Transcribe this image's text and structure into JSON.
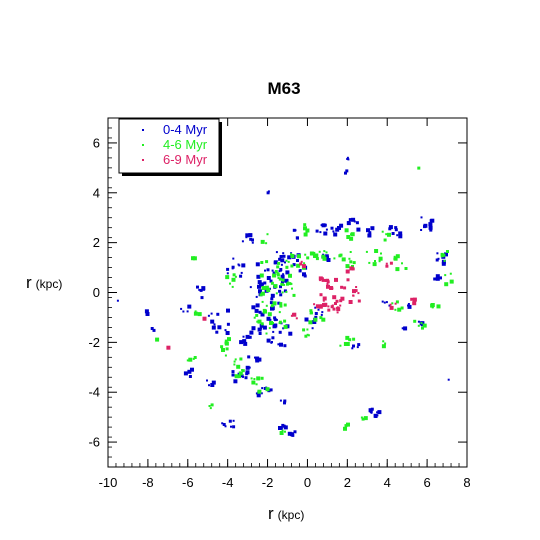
{
  "chart_data": {
    "type": "scatter",
    "title": "M63",
    "xlabel": "r",
    "xlabel_unit": "(kpc)",
    "ylabel": "r",
    "ylabel_unit": "(kpc)",
    "xlim": [
      -10,
      8
    ],
    "ylim": [
      -7,
      7
    ],
    "xticks": [
      -10,
      -8,
      -6,
      -4,
      -2,
      0,
      2,
      4,
      6,
      8
    ],
    "yticks": [
      -6,
      -4,
      -2,
      0,
      2,
      4,
      6
    ],
    "xtick_labels": [
      "-10",
      "-8",
      "-6",
      "-4",
      "-2",
      "0",
      "2",
      "4",
      "6",
      "8"
    ],
    "ytick_labels": [
      "-6",
      "-4",
      "-2",
      "0",
      "2",
      "4",
      "6"
    ],
    "grid": false,
    "legend_position": "top-left",
    "series": [
      {
        "name": "0-4 Myr",
        "color": "#0000cc",
        "clusters": [
          [
            -2.0,
            0.6,
            0.9,
            0.8,
            34
          ],
          [
            -1.0,
            1.4,
            0.7,
            0.3,
            14
          ],
          [
            -2.2,
            -0.6,
            0.8,
            1.0,
            30
          ],
          [
            -1.5,
            -1.6,
            0.6,
            0.5,
            14
          ],
          [
            -3.5,
            -3.3,
            0.4,
            0.3,
            10
          ],
          [
            -2.8,
            -2.7,
            0.3,
            0.3,
            8
          ],
          [
            -3.2,
            -1.7,
            0.3,
            0.3,
            7
          ],
          [
            -2.1,
            -3.9,
            0.5,
            0.15,
            10
          ],
          [
            -4.1,
            -5.2,
            0.4,
            0.15,
            7
          ],
          [
            -1.3,
            -5.3,
            0.2,
            0.1,
            5
          ],
          [
            -0.8,
            -5.6,
            0.2,
            0.1,
            4
          ],
          [
            -4.5,
            -1.2,
            0.5,
            0.6,
            12
          ],
          [
            -5.4,
            0.0,
            0.2,
            0.3,
            6
          ],
          [
            -3.7,
            1.1,
            0.4,
            0.4,
            10
          ],
          [
            -3.0,
            2.2,
            0.3,
            0.3,
            7
          ],
          [
            -0.7,
            2.4,
            0.2,
            0.2,
            4
          ],
          [
            1.0,
            2.6,
            0.6,
            0.2,
            14
          ],
          [
            2.2,
            2.8,
            0.3,
            0.2,
            7
          ],
          [
            3.0,
            2.5,
            0.2,
            0.2,
            4
          ],
          [
            4.3,
            2.6,
            0.3,
            0.3,
            8
          ],
          [
            5.9,
            2.8,
            0.3,
            0.3,
            10
          ],
          [
            6.6,
            1.2,
            0.3,
            0.6,
            12
          ],
          [
            2.0,
            5.4,
            0.1,
            0.1,
            3
          ],
          [
            1.9,
            4.9,
            0.1,
            0.1,
            2
          ],
          [
            -2.0,
            4.1,
            0.1,
            0.1,
            2
          ],
          [
            -1.3,
            -4.3,
            0.1,
            0.1,
            3
          ],
          [
            3.9,
            -0.4,
            0.2,
            0.1,
            4
          ],
          [
            5.0,
            -0.5,
            0.1,
            0.1,
            3
          ],
          [
            5.6,
            -1.2,
            0.2,
            0.1,
            4
          ],
          [
            4.8,
            -1.3,
            0.1,
            0.1,
            3
          ],
          [
            2.4,
            -2.1,
            0.2,
            0.1,
            4
          ],
          [
            3.3,
            -4.7,
            0.3,
            0.1,
            6
          ],
          [
            3.5,
            -4.9,
            0.2,
            0.1,
            3
          ],
          [
            -8.1,
            -0.7,
            0.1,
            0.2,
            2
          ],
          [
            -7.8,
            -1.4,
            0.1,
            0.1,
            2
          ],
          [
            -6.2,
            -0.6,
            0.2,
            0.2,
            4
          ],
          [
            -6.0,
            -3.2,
            0.2,
            0.2,
            4
          ],
          [
            -4.9,
            -3.6,
            0.2,
            0.2,
            4
          ],
          [
            0.6,
            -0.8,
            0.3,
            0.3,
            7
          ],
          [
            0.0,
            -1.2,
            0.3,
            0.2,
            5
          ],
          [
            -0.3,
            0.9,
            0.2,
            0.2,
            5
          ],
          [
            0.8,
            1.5,
            0.3,
            0.2,
            5
          ],
          [
            -9.6,
            -0.3,
            0.05,
            0.05,
            1
          ],
          [
            7.0,
            -3.5,
            0.05,
            0.05,
            1
          ]
        ]
      },
      {
        "name": "4-6 Myr",
        "color": "#22ee22",
        "clusters": [
          [
            -1.6,
            0.5,
            0.9,
            0.9,
            34
          ],
          [
            -1.9,
            -1.0,
            0.8,
            0.7,
            24
          ],
          [
            -0.6,
            1.3,
            0.6,
            0.3,
            14
          ],
          [
            0.6,
            1.6,
            0.5,
            0.2,
            10
          ],
          [
            1.8,
            1.4,
            0.5,
            0.3,
            10
          ],
          [
            3.3,
            1.5,
            0.4,
            0.3,
            8
          ],
          [
            4.6,
            1.3,
            0.3,
            0.3,
            7
          ],
          [
            6.8,
            1.6,
            0.2,
            0.3,
            6
          ],
          [
            7.0,
            0.6,
            0.2,
            0.2,
            4
          ],
          [
            2.0,
            2.4,
            0.2,
            0.2,
            5
          ],
          [
            3.8,
            2.3,
            0.2,
            0.2,
            4
          ],
          [
            -3.4,
            -3.0,
            0.4,
            0.4,
            10
          ],
          [
            -2.5,
            -3.6,
            0.4,
            0.3,
            8
          ],
          [
            -4.3,
            -2.1,
            0.4,
            0.4,
            8
          ],
          [
            -5.8,
            1.4,
            0.1,
            0.1,
            3
          ],
          [
            -5.6,
            -0.8,
            0.1,
            0.1,
            3
          ],
          [
            -7.6,
            -1.9,
            0.1,
            0.1,
            2
          ],
          [
            -4.8,
            -4.5,
            0.2,
            0.1,
            3
          ],
          [
            -1.3,
            -5.6,
            0.2,
            0.1,
            3
          ],
          [
            1.8,
            -5.3,
            0.2,
            0.1,
            3
          ],
          [
            2.7,
            -5.0,
            0.2,
            0.1,
            3
          ],
          [
            2.0,
            -1.9,
            0.4,
            0.2,
            6
          ],
          [
            3.8,
            -2.0,
            0.2,
            0.1,
            3
          ],
          [
            5.6,
            -1.2,
            0.3,
            0.2,
            5
          ],
          [
            4.4,
            -0.5,
            0.3,
            0.2,
            5
          ],
          [
            6.3,
            -0.4,
            0.2,
            0.2,
            4
          ],
          [
            0.4,
            -0.9,
            0.4,
            0.3,
            8
          ],
          [
            -0.2,
            -1.6,
            0.3,
            0.2,
            5
          ],
          [
            5.5,
            5.1,
            0.05,
            0.05,
            1
          ],
          [
            -2.2,
            2.2,
            0.2,
            0.2,
            4
          ],
          [
            -0.3,
            2.6,
            0.2,
            0.2,
            4
          ],
          [
            -5.9,
            -2.6,
            0.2,
            0.2,
            4
          ],
          [
            -3.9,
            0.5,
            0.3,
            0.3,
            6
          ]
        ]
      },
      {
        "name": "6-9 Myr",
        "color": "#dd2266",
        "clusters": [
          [
            1.4,
            0.4,
            0.6,
            0.2,
            12
          ],
          [
            2.3,
            0.0,
            0.3,
            0.3,
            8
          ],
          [
            1.0,
            -0.6,
            0.5,
            0.2,
            10
          ],
          [
            0.5,
            -0.2,
            0.3,
            0.3,
            8
          ],
          [
            1.6,
            -0.4,
            0.4,
            0.3,
            8
          ],
          [
            0.7,
            0.6,
            0.3,
            0.1,
            5
          ],
          [
            4.1,
            1.2,
            0.2,
            0.2,
            3
          ],
          [
            4.2,
            -0.5,
            0.2,
            0.1,
            3
          ],
          [
            5.2,
            -0.3,
            0.2,
            0.1,
            3
          ],
          [
            -0.8,
            -0.9,
            0.3,
            0.1,
            4
          ],
          [
            -0.4,
            1.2,
            0.2,
            0.1,
            3
          ],
          [
            2.1,
            1.0,
            0.2,
            0.1,
            3
          ],
          [
            -7.0,
            -2.1,
            0.1,
            0.1,
            2
          ],
          [
            -5.3,
            -1.0,
            0.1,
            0.1,
            2
          ]
        ]
      }
    ]
  }
}
